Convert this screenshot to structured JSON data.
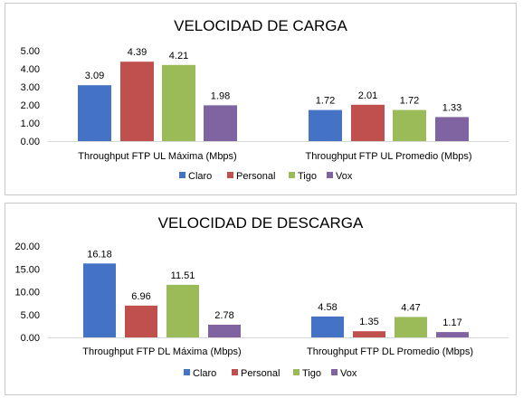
{
  "chart_data": [
    {
      "type": "bar",
      "title": "VELOCIDAD DE CARGA",
      "categories": [
        "Throughput FTP UL Máxima (Mbps)",
        "Throughput FTP UL Promedio (Mbps)"
      ],
      "series": [
        {
          "name": "Claro",
          "color": "#4472c4",
          "values": [
            3.09,
            1.72
          ]
        },
        {
          "name": "Personal",
          "color": "#c0504d",
          "values": [
            4.39,
            2.01
          ]
        },
        {
          "name": "Tigo",
          "color": "#9bbb59",
          "values": [
            4.21,
            1.72
          ]
        },
        {
          "name": "Vox",
          "color": "#8064a2",
          "values": [
            1.98,
            1.33
          ]
        }
      ],
      "ylim": [
        0,
        5
      ],
      "yticks": [
        "0.00",
        "1.00",
        "2.00",
        "3.00",
        "4.00",
        "5.00"
      ],
      "value_labels": [
        [
          "3.09",
          "1.72"
        ],
        [
          "4.39",
          "2.01"
        ],
        [
          "4.21",
          "1.72"
        ],
        [
          "1.98",
          "1.33"
        ]
      ],
      "grid": false,
      "legend": "bottom"
    },
    {
      "type": "bar",
      "title": "VELOCIDAD DE DESCARGA",
      "categories": [
        "Throughput FTP DL Máxima (Mbps)",
        "Throughput FTP DL Promedio (Mbps)"
      ],
      "series": [
        {
          "name": "Claro",
          "color": "#4472c4",
          "values": [
            16.18,
            4.58
          ]
        },
        {
          "name": "Personal",
          "color": "#c0504d",
          "values": [
            6.96,
            1.35
          ]
        },
        {
          "name": "Tigo",
          "color": "#9bbb59",
          "values": [
            11.51,
            4.47
          ]
        },
        {
          "name": "Vox",
          "color": "#8064a2",
          "values": [
            2.78,
            1.17
          ]
        }
      ],
      "ylim": [
        0,
        20
      ],
      "yticks": [
        "0.00",
        "5.00",
        "10.00",
        "15.00",
        "20.00"
      ],
      "value_labels": [
        [
          "16.18",
          "4.58"
        ],
        [
          "6.96",
          "1.35"
        ],
        [
          "11.51",
          "4.47"
        ],
        [
          "2.78",
          "1.17"
        ]
      ],
      "grid": false,
      "legend": "bottom"
    }
  ]
}
